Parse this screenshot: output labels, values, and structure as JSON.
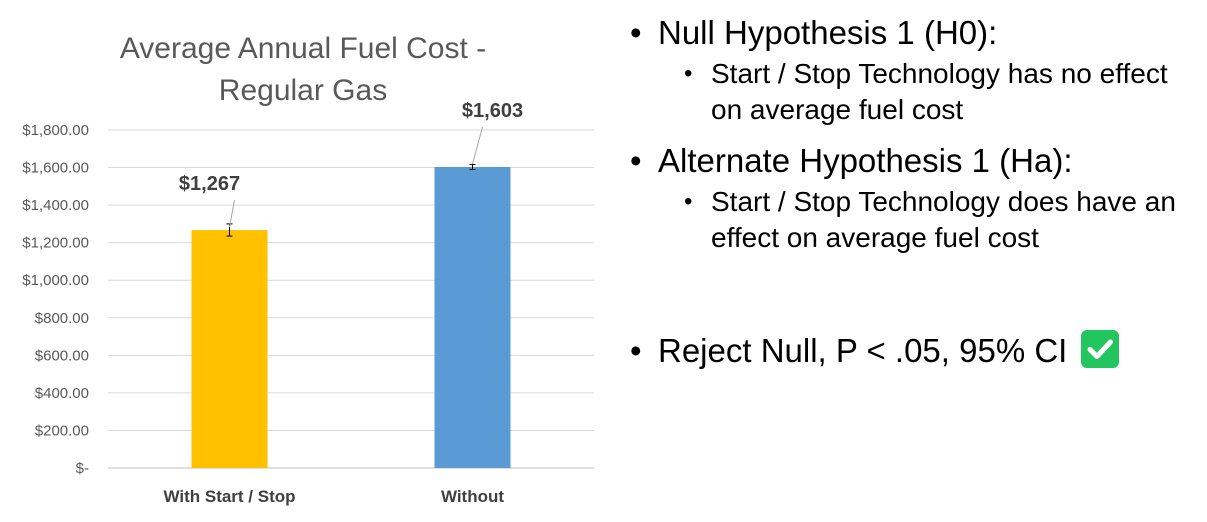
{
  "chart_data": {
    "type": "bar",
    "title": "Average Annual Fuel Cost - Regular Gas",
    "title_lines": [
      "Average Annual Fuel Cost -",
      "Regular Gas"
    ],
    "categories": [
      "With Start / Stop",
      "Without"
    ],
    "values": [
      1267,
      1603
    ],
    "data_labels": [
      "$1,267",
      "$1,603"
    ],
    "error_bars": [
      [
        1235,
        1300
      ],
      [
        1590,
        1616
      ]
    ],
    "colors": [
      "#FFC000",
      "#5B9BD5"
    ],
    "ylim": [
      0,
      1800
    ],
    "y_ticks": [
      0,
      200,
      400,
      600,
      800,
      1000,
      1200,
      1400,
      1600,
      1800
    ],
    "y_tick_labels": [
      "$-",
      "$200.00",
      "$400.00",
      "$600.00",
      "$800.00",
      "$1,000.00",
      "$1,200.00",
      "$1,400.00",
      "$1,600.00",
      "$1,800.00"
    ],
    "grid": true,
    "xlabel": "",
    "ylabel": ""
  },
  "hypotheses": {
    "null_heading": "Null Hypothesis 1 (H0):",
    "null_text": "Start / Stop Technology has no effect on average fuel cost",
    "alt_heading": "Alternate Hypothesis 1 (Ha):",
    "alt_text": "Start / Stop Technology does have an effect on average fuel cost",
    "conclusion": "Reject Null, P < .05, 95% CI",
    "check_icon": "check-mark-button-icon",
    "check_color": "#22c55e"
  }
}
